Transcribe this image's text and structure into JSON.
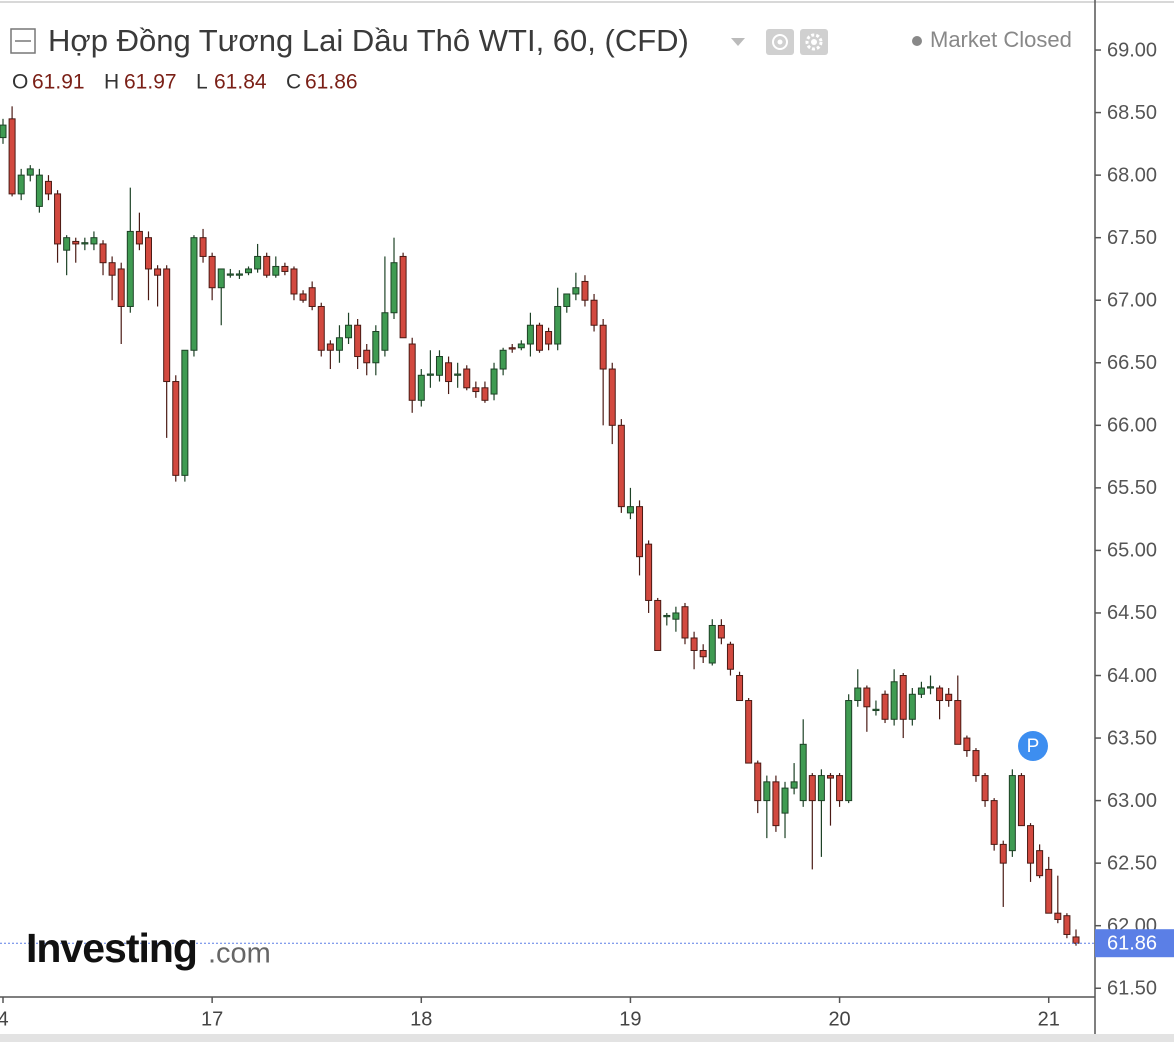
{
  "chart_data": {
    "type": "candlestick",
    "title": "Hợp Đồng Tương Lai Dầu Thô WTI, 60, (CFD)",
    "status": "Market Closed",
    "ohlc_labels": [
      "O",
      "H",
      "L",
      "C"
    ],
    "badge": "P",
    "watermark": [
      "Investing",
      ".com"
    ],
    "up_color": "#3f9b52",
    "down_color": "#d2493f",
    "last_price_color": "#5b7fe6",
    "grid": false,
    "categories": [
      "4",
      null,
      null,
      null,
      null,
      null,
      null,
      null,
      null,
      null,
      null,
      null,
      null,
      null,
      null,
      null,
      null,
      null,
      null,
      null,
      null,
      null,
      null,
      "17",
      null,
      null,
      null,
      null,
      null,
      null,
      null,
      null,
      null,
      null,
      null,
      null,
      null,
      null,
      null,
      null,
      null,
      null,
      null,
      null,
      null,
      null,
      "18",
      null,
      null,
      null,
      null,
      null,
      null,
      null,
      null,
      null,
      null,
      null,
      null,
      null,
      null,
      null,
      null,
      null,
      null,
      null,
      null,
      null,
      null,
      "19",
      null,
      null,
      null,
      null,
      null,
      null,
      null,
      null,
      null,
      null,
      null,
      null,
      null,
      null,
      null,
      null,
      null,
      null,
      null,
      null,
      null,
      null,
      "20",
      null,
      null,
      null,
      null,
      null,
      null,
      null,
      null,
      null,
      null,
      null,
      null,
      null,
      null,
      null,
      null,
      null,
      null,
      null,
      null,
      null,
      null,
      "21",
      null,
      null,
      null
    ],
    "open": [
      68.3,
      68.45,
      67.85,
      68.0,
      67.75,
      67.95,
      67.85,
      67.4,
      67.47,
      67.45,
      67.45,
      67.45,
      67.3,
      67.25,
      66.95,
      67.55,
      67.5,
      67.25,
      67.25,
      66.35,
      65.6,
      66.6,
      67.5,
      67.35,
      67.1,
      67.2,
      67.2,
      67.22,
      67.25,
      67.35,
      67.2,
      67.27,
      67.25,
      67.05,
      67.1,
      66.95,
      66.65,
      66.6,
      66.7,
      66.8,
      66.6,
      66.5,
      66.6,
      66.9,
      67.35,
      66.65,
      66.2,
      66.4,
      66.4,
      66.5,
      66.4,
      66.45,
      66.3,
      66.3,
      66.25,
      66.45,
      66.62,
      66.62,
      66.65,
      66.8,
      66.75,
      66.65,
      66.95,
      67.05,
      67.15,
      67.0,
      66.8,
      66.45,
      66.0,
      65.3,
      65.35,
      65.05,
      64.6,
      64.47,
      64.45,
      64.55,
      64.3,
      64.2,
      64.1,
      64.4,
      64.25,
      64.0,
      63.8,
      63.3,
      63.0,
      63.15,
      62.9,
      63.1,
      63.0,
      63.2,
      63.0,
      63.2,
      63.2,
      63.0,
      63.8,
      63.9,
      63.72,
      63.85,
      63.65,
      64.0,
      63.65,
      63.85,
      63.9,
      63.9,
      63.85,
      63.8,
      63.5,
      63.4,
      63.2,
      63.0,
      62.65,
      62.6,
      63.2,
      62.8,
      62.6,
      62.45,
      62.1,
      62.08,
      61.91
    ],
    "high": [
      68.45,
      68.55,
      68.05,
      68.08,
      68.05,
      68.0,
      67.88,
      67.52,
      67.5,
      67.5,
      67.55,
      67.48,
      67.35,
      67.3,
      67.9,
      67.7,
      67.55,
      67.28,
      67.28,
      66.4,
      66.6,
      67.52,
      67.57,
      67.38,
      67.25,
      67.25,
      67.24,
      67.27,
      67.45,
      67.38,
      67.35,
      67.3,
      67.27,
      67.08,
      67.15,
      66.98,
      66.68,
      66.8,
      66.9,
      66.85,
      66.65,
      66.8,
      67.35,
      67.5,
      67.38,
      66.7,
      66.45,
      66.6,
      66.6,
      66.55,
      66.5,
      66.48,
      66.35,
      66.35,
      66.5,
      66.62,
      66.65,
      66.68,
      66.9,
      66.82,
      66.78,
      67.1,
      67.05,
      67.22,
      67.2,
      67.05,
      66.85,
      66.5,
      66.05,
      65.5,
      65.4,
      65.08,
      64.62,
      64.5,
      64.55,
      64.58,
      64.35,
      64.25,
      64.45,
      64.45,
      64.27,
      64.03,
      63.82,
      63.32,
      63.2,
      63.2,
      63.15,
      63.3,
      63.65,
      63.22,
      63.25,
      63.22,
      63.22,
      63.85,
      64.05,
      63.92,
      63.8,
      63.88,
      64.05,
      64.02,
      63.9,
      63.95,
      64.0,
      63.92,
      63.9,
      64.0,
      63.52,
      63.42,
      63.22,
      63.02,
      62.68,
      63.25,
      63.22,
      62.82,
      62.65,
      62.55,
      62.4,
      62.1,
      61.97
    ],
    "low": [
      68.25,
      67.83,
      67.8,
      67.95,
      67.7,
      67.8,
      67.3,
      67.2,
      67.3,
      67.4,
      67.4,
      67.2,
      67.0,
      66.65,
      66.9,
      67.4,
      67.0,
      66.95,
      65.9,
      65.55,
      65.55,
      66.55,
      67.3,
      67.0,
      66.8,
      67.18,
      67.17,
      67.2,
      67.22,
      67.18,
      67.18,
      67.2,
      67.0,
      66.98,
      66.92,
      66.55,
      66.45,
      66.5,
      66.65,
      66.45,
      66.4,
      66.4,
      66.55,
      66.85,
      66.7,
      66.1,
      66.15,
      66.3,
      66.35,
      66.25,
      66.3,
      66.28,
      66.22,
      66.18,
      66.2,
      66.4,
      66.58,
      66.6,
      66.55,
      66.58,
      66.6,
      66.6,
      66.9,
      67.0,
      66.95,
      66.75,
      66.0,
      65.85,
      65.3,
      65.25,
      64.8,
      64.5,
      64.2,
      64.4,
      64.35,
      64.25,
      64.05,
      64.1,
      64.08,
      64.25,
      64.0,
      63.8,
      63.3,
      62.9,
      62.7,
      62.75,
      62.7,
      63.05,
      62.95,
      62.45,
      62.55,
      62.8,
      62.95,
      62.98,
      63.75,
      63.55,
      63.68,
      63.62,
      63.6,
      63.5,
      63.6,
      63.82,
      63.85,
      63.65,
      63.75,
      63.45,
      63.35,
      63.15,
      62.95,
      62.6,
      62.15,
      62.55,
      62.8,
      62.35,
      62.38,
      62.1,
      62.02,
      61.9,
      61.84
    ],
    "close": [
      68.4,
      67.85,
      68.0,
      68.05,
      68.0,
      67.85,
      67.45,
      67.5,
      67.45,
      67.46,
      67.5,
      67.3,
      67.2,
      66.95,
      67.55,
      67.45,
      67.25,
      67.2,
      66.35,
      65.6,
      66.6,
      67.5,
      67.35,
      67.1,
      67.25,
      67.21,
      67.21,
      67.25,
      67.35,
      67.2,
      67.27,
      67.23,
      67.05,
      67.0,
      66.95,
      66.6,
      66.6,
      66.7,
      66.8,
      66.55,
      66.5,
      66.75,
      66.9,
      67.3,
      66.7,
      66.2,
      66.4,
      66.41,
      66.55,
      66.35,
      66.41,
      66.3,
      66.27,
      66.2,
      66.45,
      66.6,
      66.61,
      66.65,
      66.8,
      66.6,
      66.65,
      66.95,
      67.05,
      67.1,
      67.0,
      66.8,
      66.45,
      66.0,
      65.35,
      65.35,
      64.95,
      64.6,
      64.2,
      64.48,
      64.5,
      64.3,
      64.2,
      64.15,
      64.4,
      64.3,
      64.05,
      63.8,
      63.3,
      63.0,
      63.15,
      62.8,
      63.1,
      63.15,
      63.45,
      63.0,
      63.2,
      63.18,
      63.0,
      63.8,
      63.9,
      63.75,
      63.73,
      63.65,
      63.95,
      63.65,
      63.85,
      63.9,
      63.91,
      63.8,
      63.8,
      63.45,
      63.4,
      63.2,
      63.0,
      62.65,
      62.5,
      63.2,
      62.8,
      62.5,
      62.4,
      62.1,
      62.05,
      61.93,
      61.86
    ],
    "ylim": [
      61.43,
      69.4
    ],
    "yticks": [
      {
        "value": 61.5,
        "label": "61.50"
      },
      {
        "value": 62,
        "label": "62.00"
      },
      {
        "value": 62.5,
        "label": "62.50"
      },
      {
        "value": 63,
        "label": "63.00"
      },
      {
        "value": 63.5,
        "label": "63.50"
      },
      {
        "value": 64,
        "label": "64.00"
      },
      {
        "value": 64.5,
        "label": "64.50"
      },
      {
        "value": 65,
        "label": "65.00"
      },
      {
        "value": 65.5,
        "label": "65.50"
      },
      {
        "value": 66,
        "label": "66.00"
      },
      {
        "value": 66.5,
        "label": "66.50"
      },
      {
        "value": 67,
        "label": "67.00"
      },
      {
        "value": 67.5,
        "label": "67.50"
      },
      {
        "value": 68,
        "label": "68.00"
      },
      {
        "value": 68.5,
        "label": "68.50"
      },
      {
        "value": 69,
        "label": "69.00"
      }
    ]
  }
}
